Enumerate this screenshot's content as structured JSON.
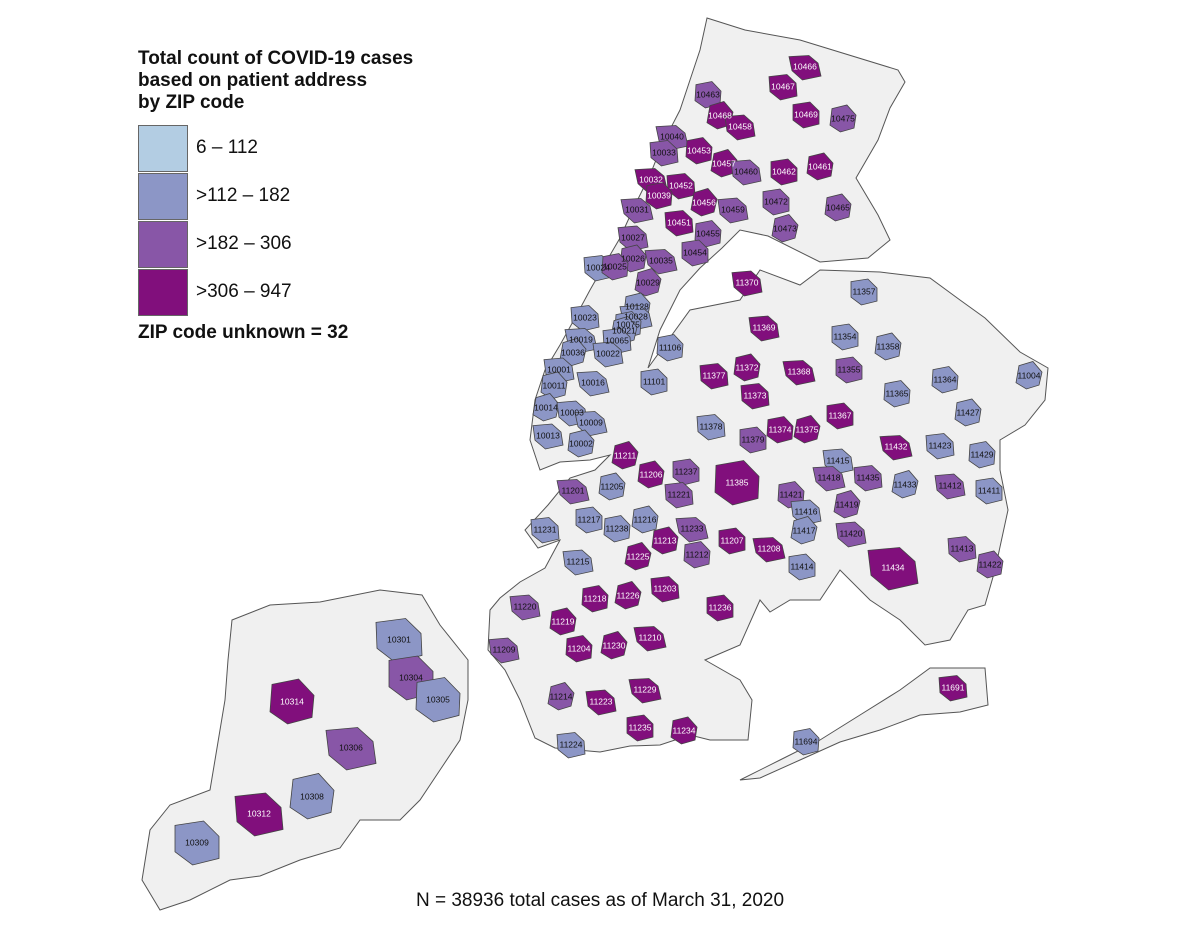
{
  "legend": {
    "title": "Total count of COVID-19 cases\nbased on patient address\nby ZIP code",
    "bins": [
      {
        "label": "6 – 112",
        "color": "#b3cde3"
      },
      {
        "label": ">112 – 182",
        "color": "#8c96c6"
      },
      {
        "label": ">182 – 306",
        "color": "#8856a7"
      },
      {
        "label": ">306 – 947",
        "color": "#810f7c"
      }
    ],
    "unknown": "ZIP code unknown = 32"
  },
  "footer": "N = 38936 total cases as of March 31, 2020",
  "no_data_color": "#f0f0f0",
  "map_data": {
    "zips": [
      {
        "zip": "10466",
        "bin": 3
      },
      {
        "zip": "10467",
        "bin": 3
      },
      {
        "zip": "10463",
        "bin": 2
      },
      {
        "zip": "10468",
        "bin": 3
      },
      {
        "zip": "10458",
        "bin": 3
      },
      {
        "zip": "10469",
        "bin": 3
      },
      {
        "zip": "10475",
        "bin": 2
      },
      {
        "zip": "10040",
        "bin": 2
      },
      {
        "zip": "10033",
        "bin": 2
      },
      {
        "zip": "10453",
        "bin": 3
      },
      {
        "zip": "10457",
        "bin": 3
      },
      {
        "zip": "10460",
        "bin": 2
      },
      {
        "zip": "10462",
        "bin": 3
      },
      {
        "zip": "10461",
        "bin": 3
      },
      {
        "zip": "10032",
        "bin": 3
      },
      {
        "zip": "10452",
        "bin": 3
      },
      {
        "zip": "10039",
        "bin": 3
      },
      {
        "zip": "10456",
        "bin": 3
      },
      {
        "zip": "10459",
        "bin": 2
      },
      {
        "zip": "10472",
        "bin": 2
      },
      {
        "zip": "10465",
        "bin": 2
      },
      {
        "zip": "10031",
        "bin": 2
      },
      {
        "zip": "10451",
        "bin": 3
      },
      {
        "zip": "10455",
        "bin": 2
      },
      {
        "zip": "10473",
        "bin": 2
      },
      {
        "zip": "10027",
        "bin": 2
      },
      {
        "zip": "10454",
        "bin": 2
      },
      {
        "zip": "10026",
        "bin": 2
      },
      {
        "zip": "10035",
        "bin": 2
      },
      {
        "zip": "10024",
        "bin": 1
      },
      {
        "zip": "10025",
        "bin": 2
      },
      {
        "zip": "10029",
        "bin": 2
      },
      {
        "zip": "11370",
        "bin": 3
      },
      {
        "zip": "11357",
        "bin": 1
      },
      {
        "zip": "10128",
        "bin": 1
      },
      {
        "zip": "10028",
        "bin": 1
      },
      {
        "zip": "10023",
        "bin": 1
      },
      {
        "zip": "10075",
        "bin": 1
      },
      {
        "zip": "10021",
        "bin": 1
      },
      {
        "zip": "11369",
        "bin": 3
      },
      {
        "zip": "11354",
        "bin": 1
      },
      {
        "zip": "11358",
        "bin": 1
      },
      {
        "zip": "10019",
        "bin": 1
      },
      {
        "zip": "10065",
        "bin": 1
      },
      {
        "zip": "11106",
        "bin": 1
      },
      {
        "zip": "10036",
        "bin": 1
      },
      {
        "zip": "10022",
        "bin": 1
      },
      {
        "zip": "11355",
        "bin": 2
      },
      {
        "zip": "11372",
        "bin": 3
      },
      {
        "zip": "11368",
        "bin": 3
      },
      {
        "zip": "11377",
        "bin": 3
      },
      {
        "zip": "11364",
        "bin": 1
      },
      {
        "zip": "11004",
        "bin": 1
      },
      {
        "zip": "10001",
        "bin": 1
      },
      {
        "zip": "11101",
        "bin": 1
      },
      {
        "zip": "10011",
        "bin": 1
      },
      {
        "zip": "10016",
        "bin": 1
      },
      {
        "zip": "11373",
        "bin": 3
      },
      {
        "zip": "11365",
        "bin": 1
      },
      {
        "zip": "10014",
        "bin": 1
      },
      {
        "zip": "10003",
        "bin": 1
      },
      {
        "zip": "11367",
        "bin": 3
      },
      {
        "zip": "11427",
        "bin": 1
      },
      {
        "zip": "10009",
        "bin": 1
      },
      {
        "zip": "11378",
        "bin": 1
      },
      {
        "zip": "11374",
        "bin": 3
      },
      {
        "zip": "11375",
        "bin": 3
      },
      {
        "zip": "10013",
        "bin": 1
      },
      {
        "zip": "11379",
        "bin": 2
      },
      {
        "zip": "10002",
        "bin": 1
      },
      {
        "zip": "11432",
        "bin": 3
      },
      {
        "zip": "11423",
        "bin": 1
      },
      {
        "zip": "11429",
        "bin": 1
      },
      {
        "zip": "11211",
        "bin": 3
      },
      {
        "zip": "11415",
        "bin": 1
      },
      {
        "zip": "11237",
        "bin": 2
      },
      {
        "zip": "11206",
        "bin": 3
      },
      {
        "zip": "11418",
        "bin": 2
      },
      {
        "zip": "11435",
        "bin": 2
      },
      {
        "zip": "11385",
        "bin": 3
      },
      {
        "zip": "11433",
        "bin": 1
      },
      {
        "zip": "11412",
        "bin": 2
      },
      {
        "zip": "11411",
        "bin": 1
      },
      {
        "zip": "11205",
        "bin": 1
      },
      {
        "zip": "11201",
        "bin": 2
      },
      {
        "zip": "11221",
        "bin": 2
      },
      {
        "zip": "11421",
        "bin": 2
      },
      {
        "zip": "11419",
        "bin": 2
      },
      {
        "zip": "11416",
        "bin": 1
      },
      {
        "zip": "11217",
        "bin": 1
      },
      {
        "zip": "11216",
        "bin": 1
      },
      {
        "zip": "11233",
        "bin": 2
      },
      {
        "zip": "11231",
        "bin": 1
      },
      {
        "zip": "11238",
        "bin": 1
      },
      {
        "zip": "11417",
        "bin": 1
      },
      {
        "zip": "11420",
        "bin": 2
      },
      {
        "zip": "11207",
        "bin": 3
      },
      {
        "zip": "11213",
        "bin": 3
      },
      {
        "zip": "11208",
        "bin": 3
      },
      {
        "zip": "11413",
        "bin": 2
      },
      {
        "zip": "11212",
        "bin": 2
      },
      {
        "zip": "11225",
        "bin": 3
      },
      {
        "zip": "11215",
        "bin": 1
      },
      {
        "zip": "11414",
        "bin": 1
      },
      {
        "zip": "11422",
        "bin": 2
      },
      {
        "zip": "11434",
        "bin": 3
      },
      {
        "zip": "11203",
        "bin": 3
      },
      {
        "zip": "11218",
        "bin": 3
      },
      {
        "zip": "11226",
        "bin": 3
      },
      {
        "zip": "11220",
        "bin": 2
      },
      {
        "zip": "11236",
        "bin": 3
      },
      {
        "zip": "11219",
        "bin": 3
      },
      {
        "zip": "11210",
        "bin": 3
      },
      {
        "zip": "10301",
        "bin": 1
      },
      {
        "zip": "11204",
        "bin": 3
      },
      {
        "zip": "11230",
        "bin": 3
      },
      {
        "zip": "11209",
        "bin": 2
      },
      {
        "zip": "10304",
        "bin": 2
      },
      {
        "zip": "10314",
        "bin": 3
      },
      {
        "zip": "11229",
        "bin": 3
      },
      {
        "zip": "11691",
        "bin": 3
      },
      {
        "zip": "10305",
        "bin": 1
      },
      {
        "zip": "11214",
        "bin": 2
      },
      {
        "zip": "11223",
        "bin": 3
      },
      {
        "zip": "11235",
        "bin": 3
      },
      {
        "zip": "11234",
        "bin": 3
      },
      {
        "zip": "10306",
        "bin": 2
      },
      {
        "zip": "11224",
        "bin": 1
      },
      {
        "zip": "11694",
        "bin": 1
      },
      {
        "zip": "10308",
        "bin": 1
      },
      {
        "zip": "10312",
        "bin": 3
      },
      {
        "zip": "10309",
        "bin": 1
      }
    ]
  }
}
